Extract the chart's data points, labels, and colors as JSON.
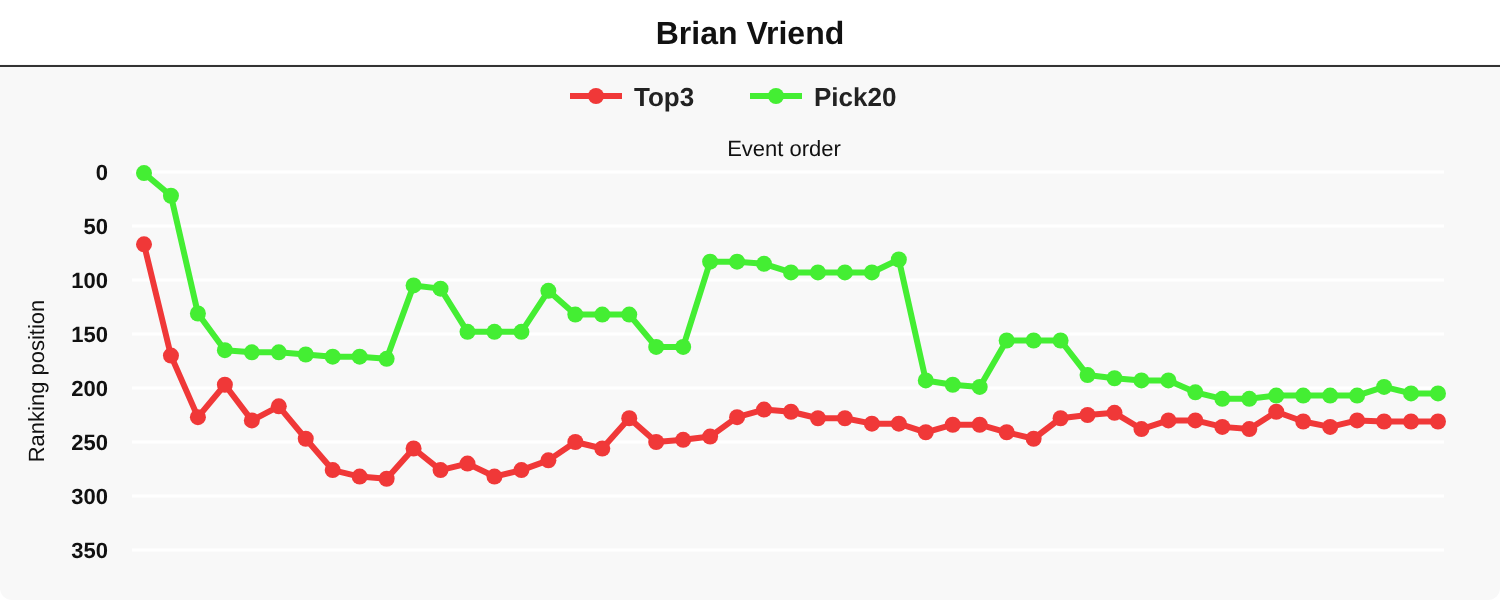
{
  "chart_data": {
    "type": "line",
    "title": "Brian Vriend",
    "xlabel": "Event order",
    "ylabel": "Ranking position",
    "categories": [
      null,
      null,
      null,
      null,
      null,
      null,
      null,
      null,
      null,
      null,
      null,
      null,
      null,
      null,
      null,
      null,
      null,
      null,
      null,
      null,
      null,
      null,
      null,
      null,
      null,
      null,
      null,
      null,
      null,
      null,
      null,
      null,
      null,
      null,
      null,
      null,
      null,
      null,
      null,
      null,
      null,
      null,
      null,
      null,
      null,
      null,
      null,
      null,
      null
    ],
    "series": [
      {
        "name": "Top3",
        "color": "#f03838",
        "values": [
          67,
          170,
          227,
          197,
          230,
          217,
          247,
          276,
          282,
          284,
          256,
          276,
          270,
          282,
          276,
          267,
          250,
          256,
          228,
          250,
          248,
          245,
          227,
          220,
          222,
          228,
          228,
          233,
          233,
          241,
          234,
          234,
          241,
          247,
          228,
          225,
          223,
          238,
          230,
          230,
          236,
          238,
          222,
          231,
          236,
          230,
          231,
          231,
          231
        ]
      },
      {
        "name": "Pick20",
        "color": "#44ee33",
        "values": [
          1,
          22,
          131,
          165,
          167,
          167,
          169,
          171,
          171,
          173,
          105,
          108,
          148,
          148,
          148,
          110,
          132,
          132,
          132,
          162,
          162,
          83,
          83,
          85,
          93,
          93,
          93,
          93,
          81,
          193,
          197,
          199,
          156,
          156,
          156,
          188,
          191,
          193,
          193,
          204,
          210,
          210,
          207,
          207,
          207,
          207,
          199,
          205,
          205
        ]
      }
    ],
    "ylim": [
      350,
      0
    ],
    "yticks": [
      0,
      50,
      100,
      150,
      200,
      250,
      300,
      350
    ],
    "grid": "y",
    "legend": "top",
    "tick_labels": "y",
    "marker": "circle",
    "line_style": "solid"
  }
}
